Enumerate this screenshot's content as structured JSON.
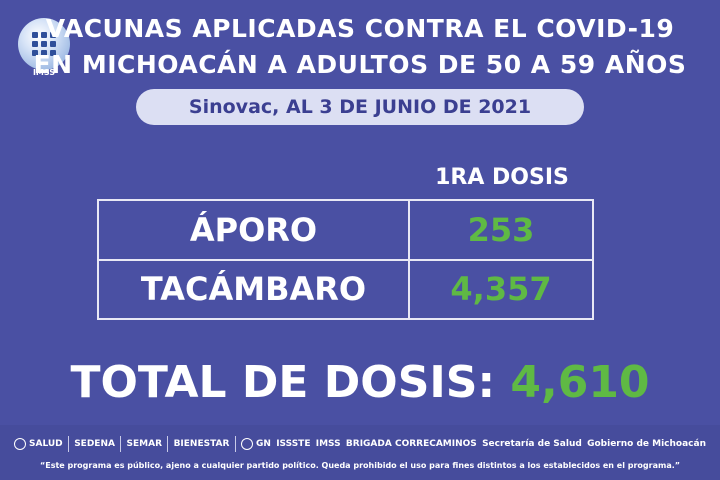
{
  "header": {
    "line1": "VACUNAS APLICADAS CONTRA EL COVID-19",
    "line2": "EN MICHOACÁN A ADULTOS DE 50 A 59 AÑOS",
    "subtitle": "Sinovac, AL 3 DE JUNIO DE 2021",
    "logo_text": "IMSS"
  },
  "table": {
    "column_header": "1RA DOSIS",
    "rows": [
      {
        "name": "ÁPORO",
        "value": "253"
      },
      {
        "name": "TACÁMBARO",
        "value": "4,357"
      }
    ]
  },
  "total": {
    "label": "TOTAL DE DOSIS:",
    "value": "4,610"
  },
  "footer": {
    "logos": [
      "SALUD",
      "SEDENA",
      "SEMAR",
      "BIENESTAR",
      "GN",
      "ISSSTE",
      "IMSS",
      "BRIGADA CORRECAMINOS",
      "Secretaría de Salud",
      "Gobierno de Michoacán"
    ],
    "disclaimer": "“Este programa es público, ajeno a cualquier partido político. Queda prohibido el uso para fines distintos a los establecidos en el programa.”"
  },
  "colors": {
    "background": "#4a50a3",
    "accent_green": "#5fb944",
    "pill": "#dcdff3"
  }
}
